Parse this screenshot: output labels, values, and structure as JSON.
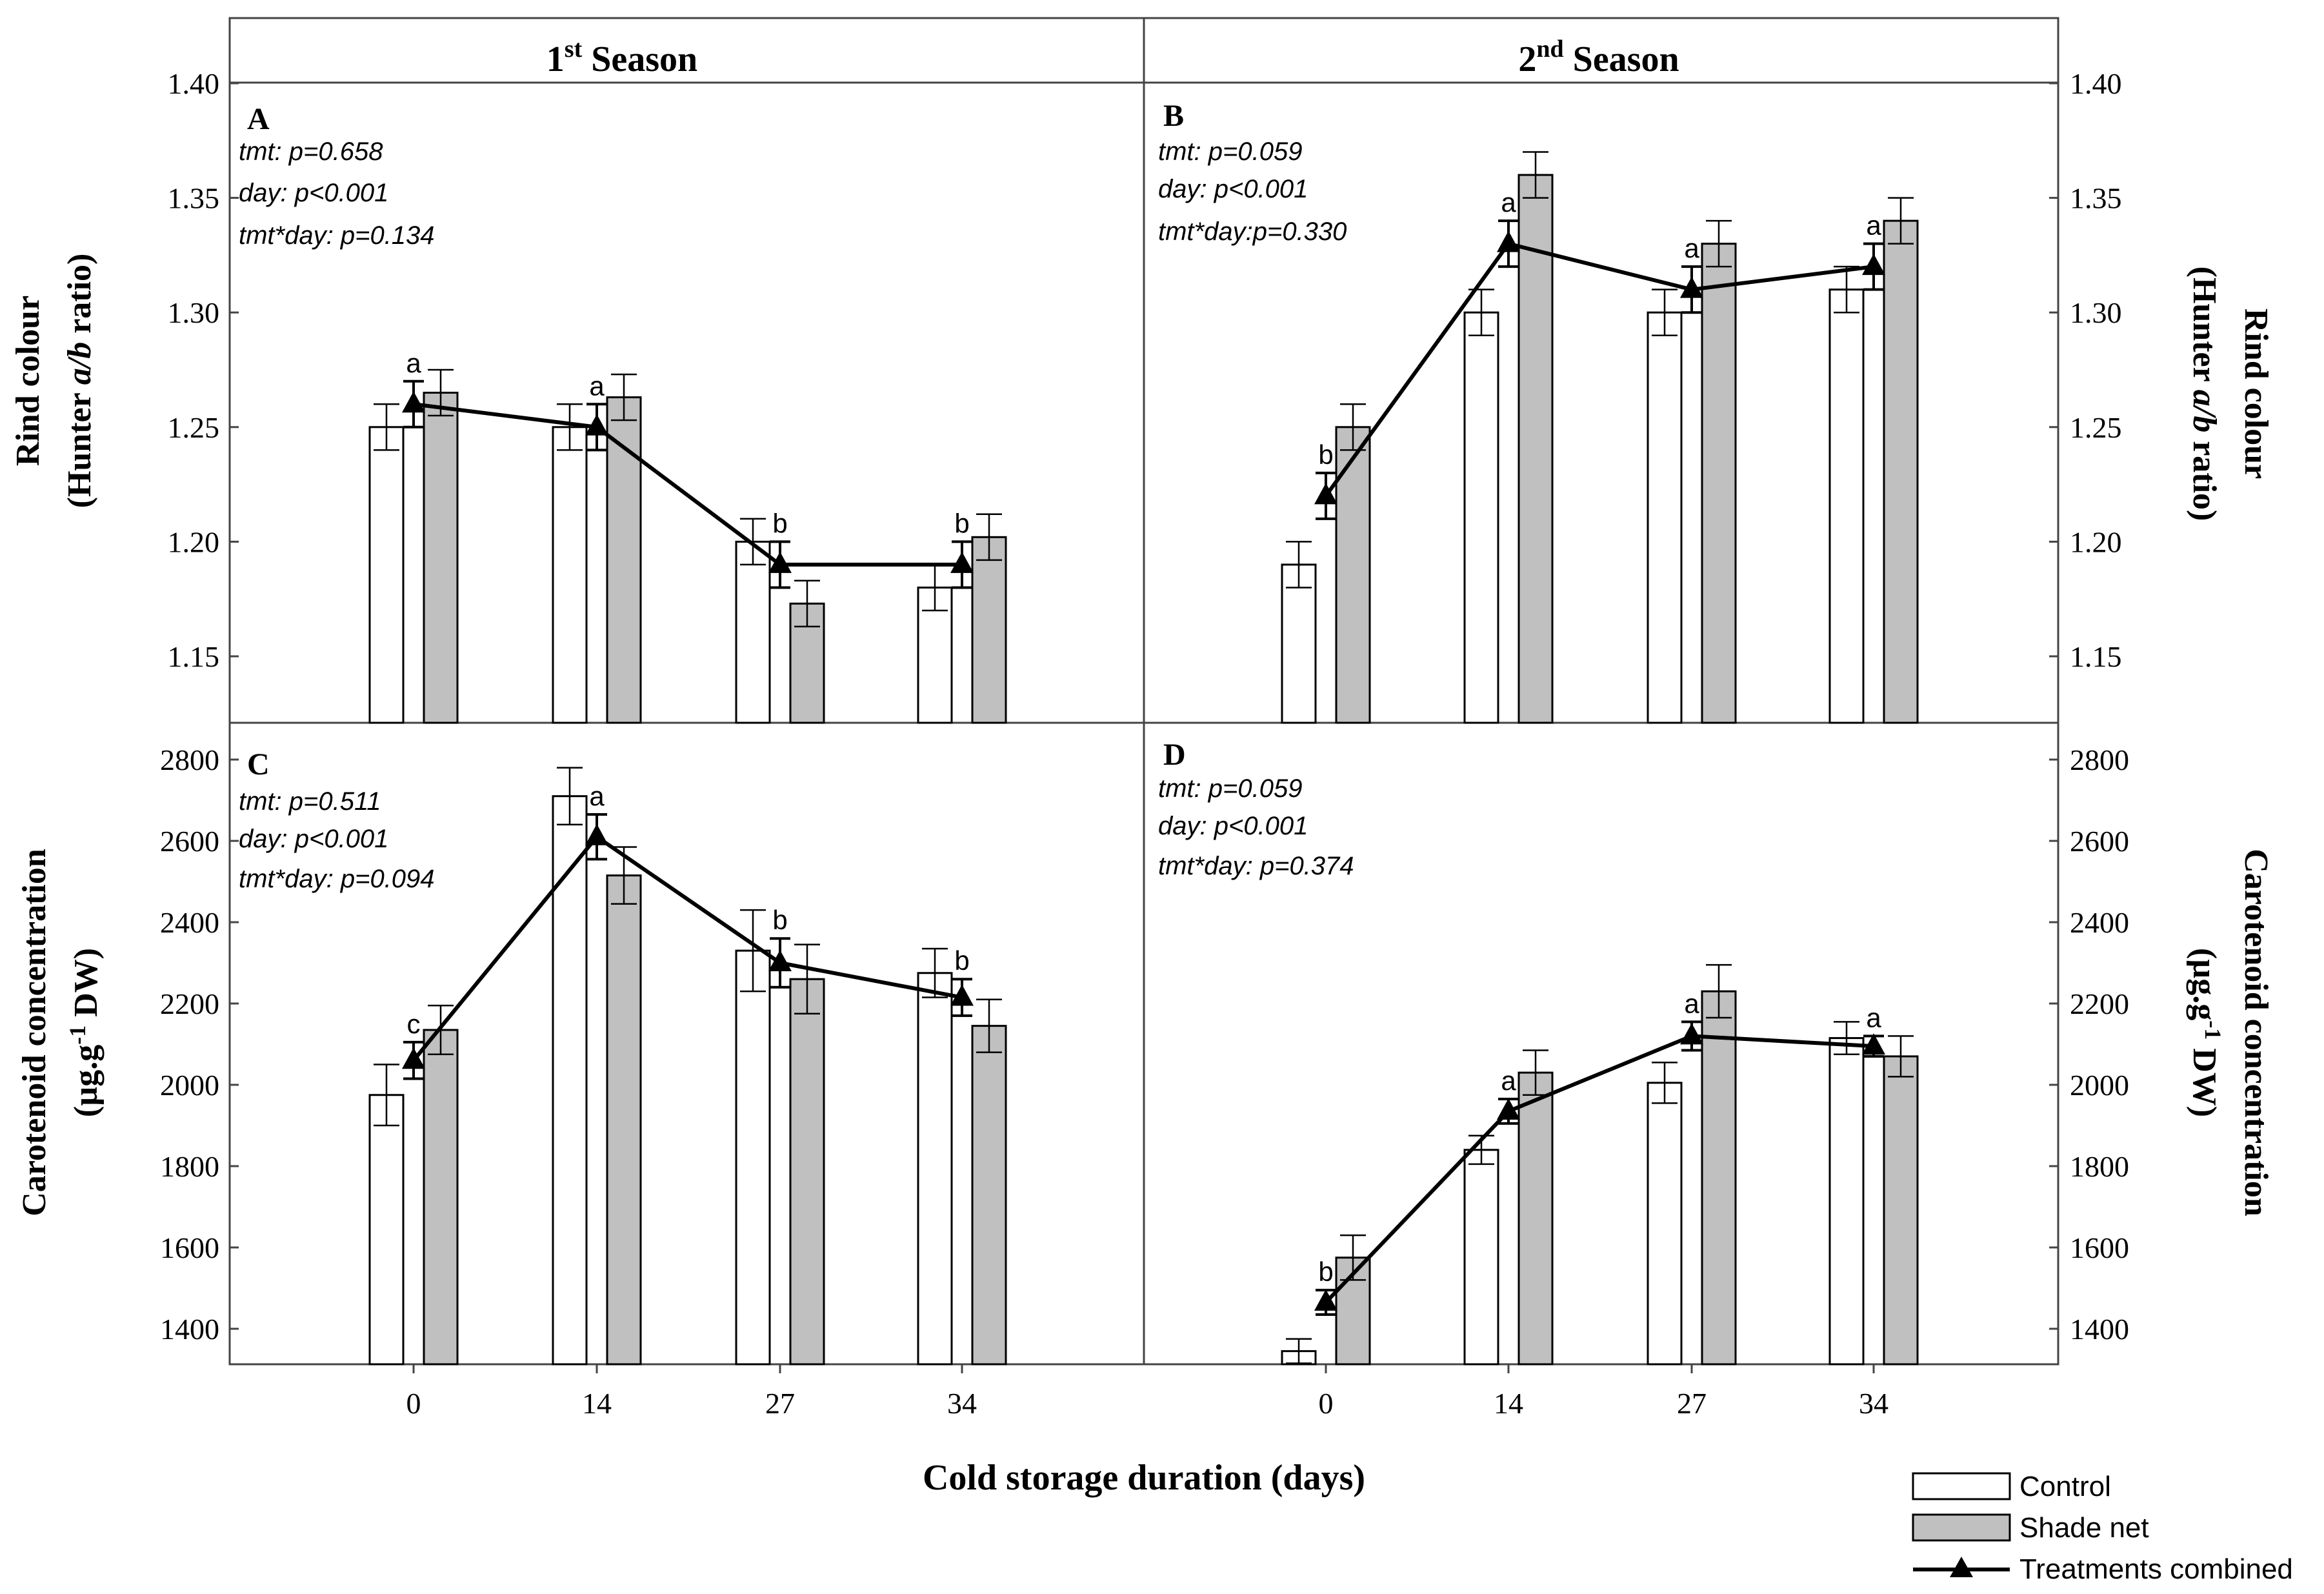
{
  "figure": {
    "x_label": "Cold storage duration (days)",
    "x_ticks": [
      "0",
      "14",
      "27",
      "34"
    ],
    "season_headers": [
      {
        "base": "1",
        "sup": "st",
        "rest": " Season"
      },
      {
        "base": "2",
        "sup": "nd",
        "rest": " Season"
      }
    ],
    "legend": [
      {
        "label": "Control",
        "kind": "bar",
        "color": "#ffffff"
      },
      {
        "label": "Shade net",
        "kind": "bar",
        "color": "#c0c0c0"
      },
      {
        "label": "Treatments combined",
        "kind": "line",
        "color": "#000000"
      }
    ],
    "y_axis_labels": {
      "rind_left": {
        "line1": "Rind colour",
        "line2_pre": "(Hunter ",
        "line2_it": "a/b",
        "line2_post": " ratio)"
      },
      "rind_right": {
        "line1": "Rind colour",
        "line2_pre": "(Hunter ",
        "line2_it": "a/b",
        "line2_post": " ratio)"
      },
      "carot_left": {
        "line1": "Carotenoid concentration",
        "line2_pre": "(µg.g",
        "line2_sup": "-1",
        "line2_post": " DW)"
      },
      "carot_right": {
        "line1": "Carotenoid concentration",
        "line2_pre": "(µg.g",
        "line2_sup": "-1",
        "line2_post": " DW)"
      }
    }
  },
  "chart_data": [
    {
      "panel": "A",
      "type": "bar",
      "title": "1st Season",
      "ylabel": "Rind colour (Hunter a/b ratio)",
      "categories": [
        "0",
        "14",
        "27",
        "34"
      ],
      "ylim": [
        1.12,
        1.4
      ],
      "y_ticks": [
        1.15,
        1.2,
        1.25,
        1.3,
        1.35,
        1.4
      ],
      "y_tick_labels": [
        "1.15",
        "1.20",
        "1.25",
        "1.30",
        "1.35",
        "1.40"
      ],
      "axis_side": "left",
      "stats": [
        "tmt: p=0.658",
        "day: p<0.001",
        "tmt*day: p=0.134"
      ],
      "series": [
        {
          "name": "Control",
          "values": [
            1.25,
            1.25,
            1.2,
            1.18
          ],
          "errors": [
            0.01,
            0.01,
            0.01,
            0.01
          ]
        },
        {
          "name": "Shade net",
          "values": [
            1.265,
            1.263,
            1.173,
            1.202
          ],
          "errors": [
            0.01,
            0.01,
            0.01,
            0.01
          ]
        }
      ],
      "combined": {
        "name": "Treatments combined",
        "values": [
          1.26,
          1.25,
          1.19,
          1.19
        ],
        "errors": [
          0.01,
          0.01,
          0.01,
          0.01
        ],
        "letters": [
          "a",
          "a",
          "b",
          "b"
        ]
      }
    },
    {
      "panel": "B",
      "type": "bar",
      "title": "2nd Season",
      "ylabel": "Rind colour (Hunter a/b ratio)",
      "categories": [
        "0",
        "14",
        "27",
        "34"
      ],
      "ylim": [
        1.12,
        1.4
      ],
      "y_ticks": [
        1.15,
        1.2,
        1.25,
        1.3,
        1.35,
        1.4
      ],
      "y_tick_labels": [
        "1.15",
        "1.20",
        "1.25",
        "1.30",
        "1.35",
        "1.40"
      ],
      "axis_side": "right",
      "stats": [
        "tmt: p=0.059",
        "day: p<0.001",
        "tmt*day:p=0.330"
      ],
      "series": [
        {
          "name": "Control",
          "values": [
            1.19,
            1.3,
            1.3,
            1.31
          ],
          "errors": [
            0.01,
            0.01,
            0.01,
            0.01
          ]
        },
        {
          "name": "Shade net",
          "values": [
            1.25,
            1.36,
            1.33,
            1.34
          ],
          "errors": [
            0.01,
            0.01,
            0.01,
            0.01
          ]
        }
      ],
      "combined": {
        "name": "Treatments combined",
        "values": [
          1.22,
          1.33,
          1.31,
          1.32
        ],
        "errors": [
          0.01,
          0.01,
          0.01,
          0.01
        ],
        "letters": [
          "b",
          "a",
          "a",
          "a"
        ]
      }
    },
    {
      "panel": "C",
      "type": "bar",
      "title": "1st Season",
      "ylabel": "Carotenoid concentration (µg.g-1 DW)",
      "categories": [
        "0",
        "14",
        "27",
        "34"
      ],
      "ylim": [
        1300,
        2820
      ],
      "y_ticks": [
        1400,
        1600,
        1800,
        2000,
        2200,
        2400,
        2600,
        2800
      ],
      "y_tick_labels": [
        "1400",
        "1600",
        "1800",
        "2000",
        "2200",
        "2400",
        "2600",
        "2800"
      ],
      "axis_side": "left",
      "stats": [
        "tmt: p=0.511",
        "day: p<0.001",
        "tmt*day: p=0.094"
      ],
      "series": [
        {
          "name": "Control",
          "values": [
            1975,
            2710,
            2330,
            2275
          ],
          "errors": [
            75,
            70,
            100,
            60
          ]
        },
        {
          "name": "Shade net",
          "values": [
            2135,
            2515,
            2260,
            2145
          ],
          "errors": [
            60,
            70,
            85,
            65
          ]
        }
      ],
      "combined": {
        "name": "Treatments combined",
        "values": [
          2060,
          2610,
          2300,
          2215
        ],
        "errors": [
          45,
          55,
          60,
          45
        ],
        "letters": [
          "c",
          "a",
          "b",
          "b"
        ]
      }
    },
    {
      "panel": "D",
      "type": "bar",
      "title": "2nd Season",
      "ylabel": "Carotenoid concentration (µg.g-1 DW)",
      "categories": [
        "0",
        "14",
        "27",
        "34"
      ],
      "ylim": [
        1300,
        2820
      ],
      "y_ticks": [
        1400,
        1600,
        1800,
        2000,
        2200,
        2400,
        2600,
        2800
      ],
      "y_tick_labels": [
        "1400",
        "1600",
        "1800",
        "2000",
        "2200",
        "2400",
        "2600",
        "2800"
      ],
      "axis_side": "right",
      "stats": [
        "tmt: p=0.059",
        "day: p<0.001",
        "tmt*day: p=0.374"
      ],
      "series": [
        {
          "name": "Control",
          "values": [
            1345,
            1840,
            2005,
            2115
          ],
          "errors": [
            30,
            35,
            50,
            40
          ]
        },
        {
          "name": "Shade net",
          "values": [
            1575,
            2030,
            2230,
            2070
          ],
          "errors": [
            55,
            55,
            65,
            50
          ]
        }
      ],
      "combined": {
        "name": "Treatments combined",
        "values": [
          1465,
          1935,
          2120,
          2095
        ],
        "errors": [
          30,
          30,
          35,
          25
        ],
        "letters": [
          "b",
          "a",
          "a",
          "a"
        ]
      }
    }
  ]
}
